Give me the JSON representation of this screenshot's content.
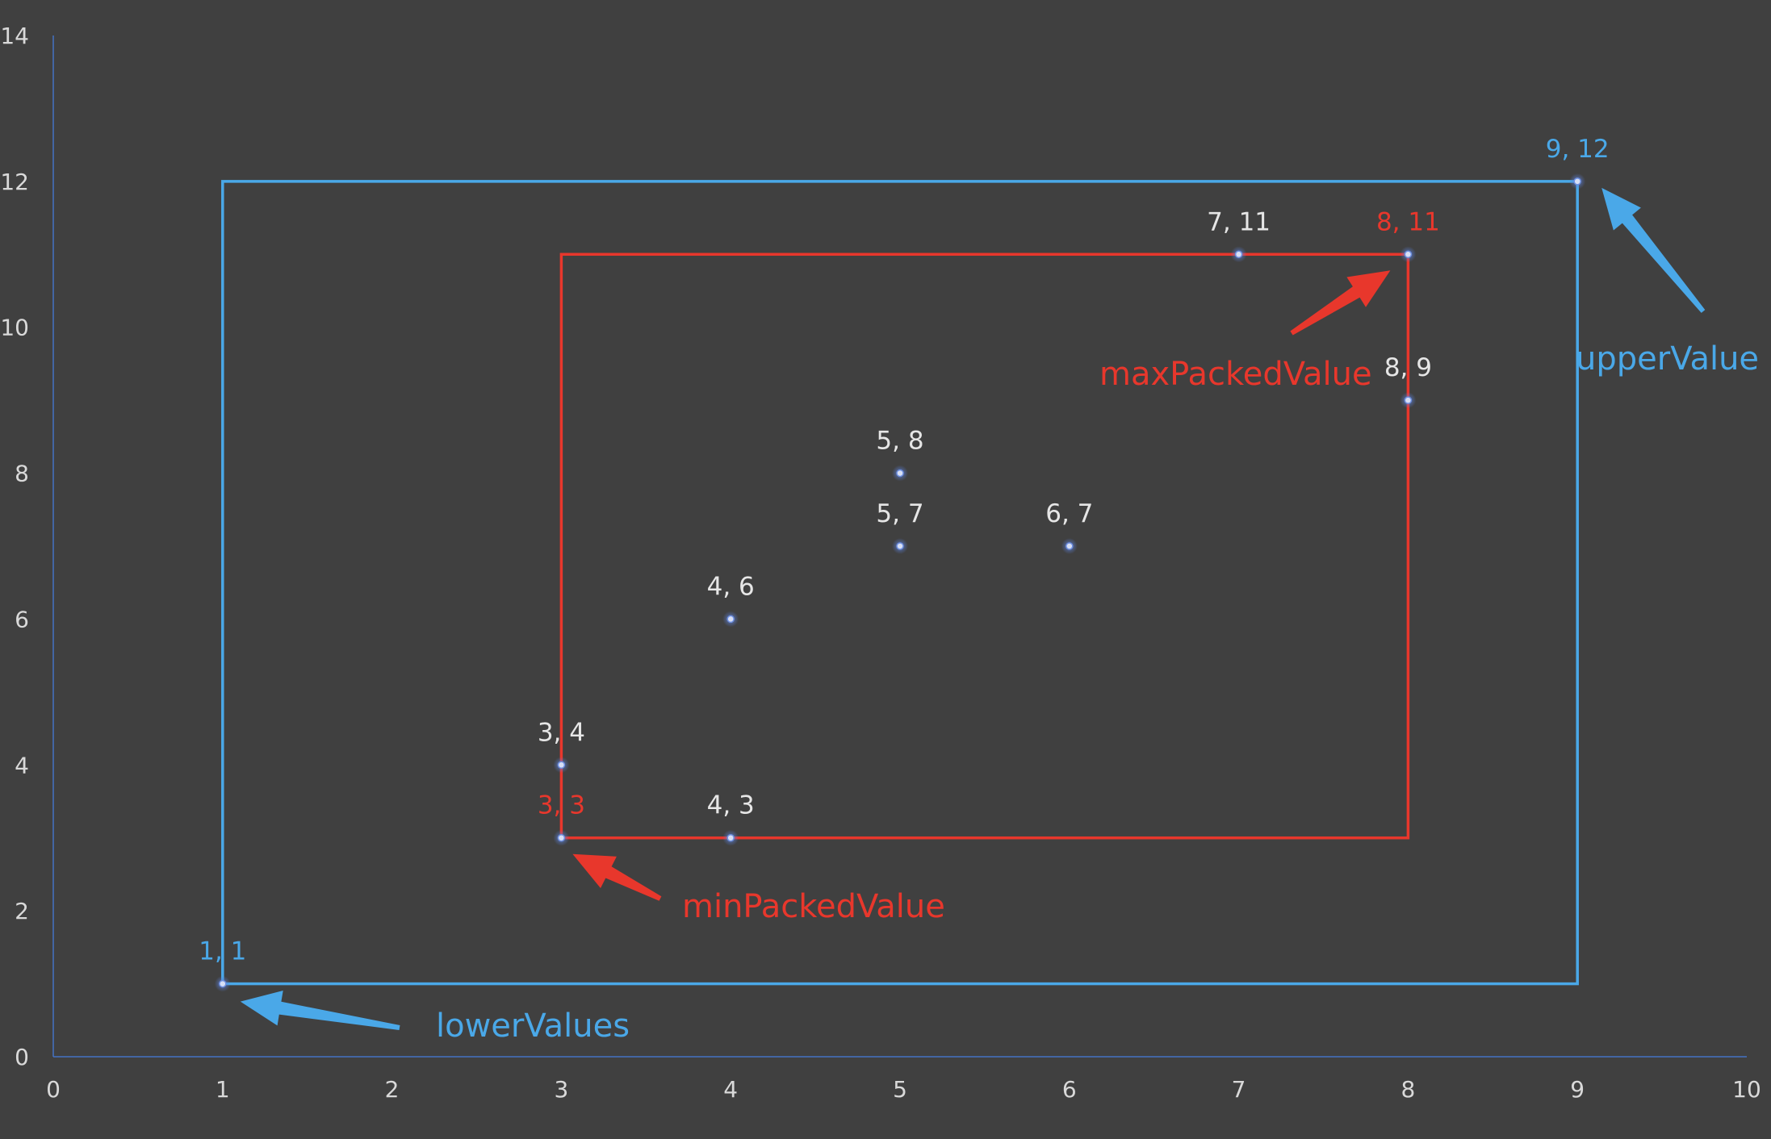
{
  "chart_data": {
    "type": "scatter",
    "title": "",
    "xlabel": "",
    "ylabel": "",
    "xlim": [
      0,
      10
    ],
    "ylim": [
      0,
      14
    ],
    "xticks": [
      "0",
      "1",
      "2",
      "3",
      "4",
      "5",
      "6",
      "7",
      "8",
      "9",
      "10"
    ],
    "yticks": [
      "0",
      "2",
      "4",
      "6",
      "8",
      "10",
      "12",
      "14"
    ],
    "grid": false,
    "points": [
      {
        "x": 1,
        "y": 1,
        "label": "1, 1",
        "color": "#4aa8e8"
      },
      {
        "x": 3,
        "y": 3,
        "label": "3, 3",
        "color": "#e8372c"
      },
      {
        "x": 3,
        "y": 4,
        "label": "3, 4",
        "color": "#e6e6e6"
      },
      {
        "x": 4,
        "y": 3,
        "label": "4, 3",
        "color": "#e6e6e6"
      },
      {
        "x": 4,
        "y": 6,
        "label": "4, 6",
        "color": "#e6e6e6"
      },
      {
        "x": 5,
        "y": 7,
        "label": "5, 7",
        "color": "#e6e6e6"
      },
      {
        "x": 5,
        "y": 8,
        "label": "5, 8",
        "color": "#e6e6e6"
      },
      {
        "x": 6,
        "y": 7,
        "label": "6, 7",
        "color": "#e6e6e6"
      },
      {
        "x": 7,
        "y": 11,
        "label": "7, 11",
        "color": "#e6e6e6"
      },
      {
        "x": 8,
        "y": 9,
        "label": "8, 9",
        "color": "#e6e6e6"
      },
      {
        "x": 8,
        "y": 11,
        "label": "8, 11",
        "color": "#e8372c"
      },
      {
        "x": 9,
        "y": 12,
        "label": "9, 12",
        "color": "#4aa8e8"
      }
    ],
    "boxes": [
      {
        "name": "outer-box",
        "x": [
          1,
          9
        ],
        "y": [
          1,
          12
        ],
        "color": "#4aa8e8"
      },
      {
        "name": "inner-box",
        "x": [
          3,
          8
        ],
        "y": [
          3,
          11
        ],
        "color": "#e8372c"
      }
    ],
    "annotations": [
      {
        "name": "lower-values",
        "text": "lowerValues",
        "color": "#4aa8e8",
        "target": [
          1,
          1
        ]
      },
      {
        "name": "upper-value",
        "text": "upperValue",
        "color": "#4aa8e8",
        "target": [
          9,
          12
        ]
      },
      {
        "name": "min-packed-value",
        "text": "minPackedValue",
        "color": "#e8372c",
        "target": [
          3,
          3
        ]
      },
      {
        "name": "max-packed-value",
        "text": "maxPackedValue",
        "color": "#e8372c",
        "target": [
          8,
          11
        ]
      }
    ],
    "axis_color": "#4472c4",
    "background": "#404040"
  }
}
